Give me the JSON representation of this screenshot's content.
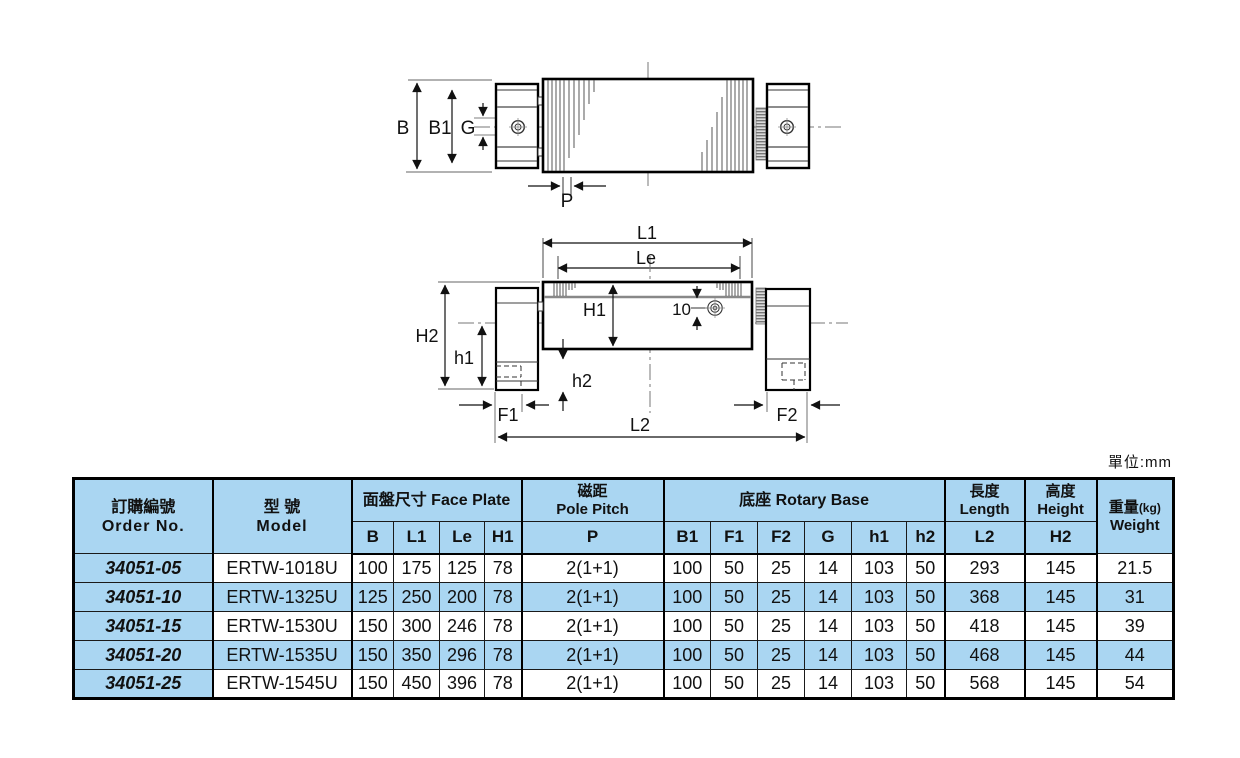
{
  "unit_note": "單位:mm",
  "labels": {
    "B": "B",
    "B1": "B1",
    "G": "G",
    "P": "P",
    "L1": "L1",
    "Le": "Le",
    "H1": "H1",
    "ten": "10",
    "H2": "H2",
    "h1": "h1",
    "h2": "h2",
    "F1": "F1",
    "F2": "F2",
    "L2": "L2"
  },
  "table": {
    "headers": {
      "order_no_zh": "訂購編號",
      "order_no_en": "Order No.",
      "model_zh": "型 號",
      "model_en": "Model",
      "face_plate": "面盤尺寸 Face Plate",
      "pole_pitch_zh": "磁距",
      "pole_pitch_en": "Pole Pitch",
      "rotary_base": "底座 Rotary Base",
      "length_zh": "長度",
      "length_en": "Length",
      "height_zh": "高度",
      "height_en": "Height",
      "weight_zh": "重量",
      "weight_kg": "(kg)",
      "weight_en": "Weight",
      "sub": [
        "B",
        "L1",
        "Le",
        "H1",
        "P",
        "B1",
        "F1",
        "F2",
        "G",
        "h1",
        "h2",
        "L2",
        "H2"
      ]
    },
    "rows": [
      {
        "order_no": "34051-05",
        "model": "ERTW-1018U",
        "values": [
          "100",
          "175",
          "125",
          "78",
          "2(1+1)",
          "100",
          "50",
          "25",
          "14",
          "103",
          "50",
          "293",
          "145",
          "21.5"
        ]
      },
      {
        "order_no": "34051-10",
        "model": "ERTW-1325U",
        "values": [
          "125",
          "250",
          "200",
          "78",
          "2(1+1)",
          "100",
          "50",
          "25",
          "14",
          "103",
          "50",
          "368",
          "145",
          "31"
        ]
      },
      {
        "order_no": "34051-15",
        "model": "ERTW-1530U",
        "values": [
          "150",
          "300",
          "246",
          "78",
          "2(1+1)",
          "100",
          "50",
          "25",
          "14",
          "103",
          "50",
          "418",
          "145",
          "39"
        ]
      },
      {
        "order_no": "34051-20",
        "model": "ERTW-1535U",
        "values": [
          "150",
          "350",
          "296",
          "78",
          "2(1+1)",
          "100",
          "50",
          "25",
          "14",
          "103",
          "50",
          "468",
          "145",
          "44"
        ]
      },
      {
        "order_no": "34051-25",
        "model": "ERTW-1545U",
        "values": [
          "150",
          "450",
          "396",
          "78",
          "2(1+1)",
          "100",
          "50",
          "25",
          "14",
          "103",
          "50",
          "568",
          "145",
          "54"
        ]
      }
    ]
  },
  "colors": {
    "table_blue": "#AAD6F2",
    "line_black": "#111111",
    "line_gray": "#999999"
  }
}
